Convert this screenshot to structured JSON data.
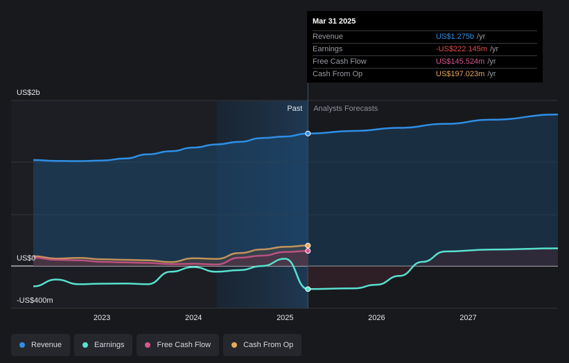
{
  "chart_data": {
    "type": "line",
    "y_axis": {
      "ticks": [
        {
          "label": "US$2b",
          "value": 2000
        },
        {
          "label": "US$0",
          "value": 0
        },
        {
          "label": "-US$400m",
          "value": -400
        }
      ],
      "ylim": [
        -400,
        1600
      ]
    },
    "x_axis": {
      "ticks": [
        "2023",
        "2024",
        "2025",
        "2026",
        "2027"
      ],
      "xlim": [
        2022.25,
        2027.98
      ]
    },
    "past_label": "Past",
    "forecast_label": "Analysts Forecasts",
    "divider_x": 2025.25,
    "series": [
      {
        "name": "Revenue",
        "color": "#2f8fe6",
        "points": [
          [
            2022.25,
            1020
          ],
          [
            2022.5,
            1012
          ],
          [
            2022.75,
            1010
          ],
          [
            2023.0,
            1015
          ],
          [
            2023.25,
            1035
          ],
          [
            2023.5,
            1075
          ],
          [
            2023.75,
            1105
          ],
          [
            2024.0,
            1140
          ],
          [
            2024.25,
            1170
          ],
          [
            2024.5,
            1195
          ],
          [
            2024.75,
            1232
          ],
          [
            2025.0,
            1246
          ],
          [
            2025.25,
            1275
          ]
        ],
        "forecast": [
          [
            2025.25,
            1275
          ],
          [
            2025.75,
            1300
          ],
          [
            2026.25,
            1330
          ],
          [
            2026.75,
            1368
          ],
          [
            2027.25,
            1408
          ],
          [
            2027.98,
            1458
          ]
        ]
      },
      {
        "name": "Earnings",
        "color": "#58e1cf",
        "points": [
          [
            2022.25,
            -195
          ],
          [
            2022.5,
            -130
          ],
          [
            2022.75,
            -175
          ],
          [
            2023.0,
            -170
          ],
          [
            2023.25,
            -168
          ],
          [
            2023.5,
            -175
          ],
          [
            2023.75,
            -55
          ],
          [
            2024.0,
            -10
          ],
          [
            2024.25,
            -55
          ],
          [
            2024.5,
            -40
          ],
          [
            2024.75,
            0
          ],
          [
            2025.0,
            70
          ],
          [
            2025.25,
            -222.145
          ]
        ],
        "forecast": [
          [
            2025.25,
            -222.145
          ],
          [
            2025.75,
            -215
          ],
          [
            2026.0,
            -180
          ],
          [
            2026.25,
            -95
          ],
          [
            2026.5,
            40
          ],
          [
            2026.75,
            140
          ],
          [
            2027.25,
            158
          ],
          [
            2027.98,
            170
          ]
        ]
      },
      {
        "name": "Free Cash Flow",
        "color": "#d9578e",
        "points": [
          [
            2022.25,
            82
          ],
          [
            2022.5,
            60
          ],
          [
            2022.75,
            55
          ],
          [
            2023.0,
            40
          ],
          [
            2023.25,
            35
          ],
          [
            2023.5,
            30
          ],
          [
            2023.75,
            18
          ],
          [
            2024.0,
            22
          ],
          [
            2024.25,
            15
          ],
          [
            2024.5,
            80
          ],
          [
            2024.75,
            100
          ],
          [
            2025.0,
            135
          ],
          [
            2025.25,
            145.524
          ]
        ]
      },
      {
        "name": "Cash From Op",
        "color": "#e7a95e",
        "points": [
          [
            2022.25,
            95
          ],
          [
            2022.5,
            72
          ],
          [
            2022.75,
            78
          ],
          [
            2023.0,
            65
          ],
          [
            2023.25,
            60
          ],
          [
            2023.5,
            55
          ],
          [
            2023.75,
            38
          ],
          [
            2024.0,
            75
          ],
          [
            2024.25,
            68
          ],
          [
            2024.5,
            125
          ],
          [
            2024.75,
            160
          ],
          [
            2025.0,
            185
          ],
          [
            2025.25,
            197.023
          ]
        ]
      }
    ]
  },
  "tooltip": {
    "date": "Mar 31 2025",
    "rows": [
      {
        "label": "Revenue",
        "value": "US$1.275b",
        "unit": "/yr",
        "color": "#2f8fe6"
      },
      {
        "label": "Earnings",
        "value": "-US$222.145m",
        "unit": "/yr",
        "color": "#e05050"
      },
      {
        "label": "Free Cash Flow",
        "value": "US$145.524m",
        "unit": "/yr",
        "color": "#d9578e"
      },
      {
        "label": "Cash From Op",
        "value": "US$197.023m",
        "unit": "/yr",
        "color": "#e7a95e"
      }
    ]
  },
  "legend": [
    {
      "label": "Revenue",
      "color": "#2f8fe6"
    },
    {
      "label": "Earnings",
      "color": "#58e1cf"
    },
    {
      "label": "Free Cash Flow",
      "color": "#d9578e"
    },
    {
      "label": "Cash From Op",
      "color": "#e7a95e"
    }
  ]
}
